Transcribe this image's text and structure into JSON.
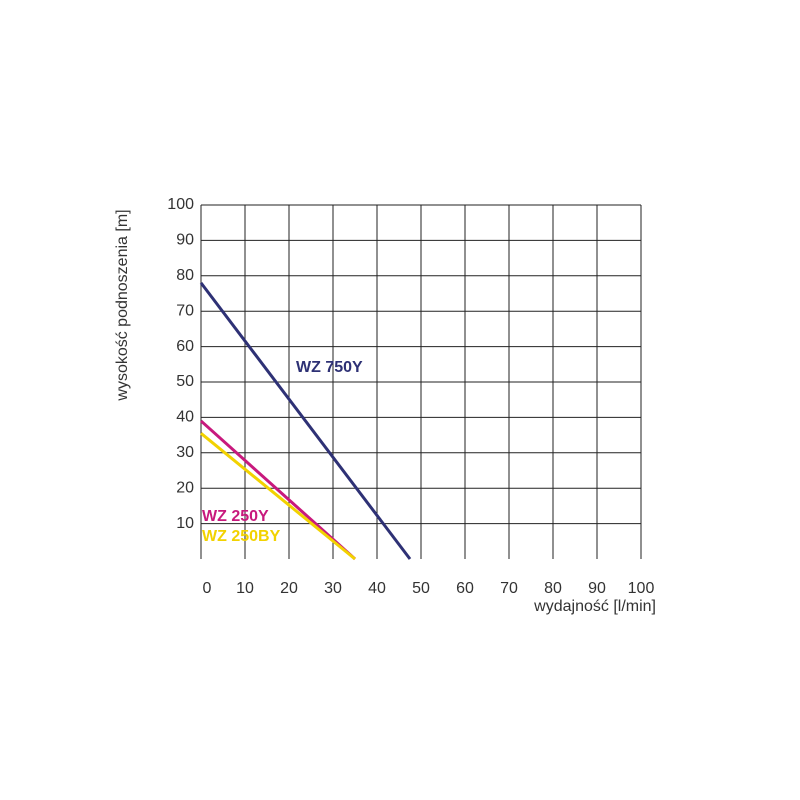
{
  "chart_data": {
    "type": "line",
    "xlabel": "wydajność [l/min]",
    "ylabel": "wysokość podnoszenia [m]",
    "xlim": [
      0,
      100
    ],
    "xticks": [
      0,
      10,
      20,
      30,
      40,
      50,
      60,
      70,
      80,
      90,
      100
    ],
    "ylim": [
      0,
      100
    ],
    "yticks": [
      10,
      20,
      30,
      40,
      50,
      60,
      70,
      80,
      90,
      100
    ],
    "grid": true,
    "series": [
      {
        "name": "WZ 750Y",
        "color": "#2e3175",
        "x": [
          0,
          47.5
        ],
        "values": [
          78,
          0
        ]
      },
      {
        "name": "WZ 250Y",
        "color": "#c8197d",
        "x": [
          0,
          35
        ],
        "values": [
          39,
          0
        ]
      },
      {
        "name": "WZ 250BY",
        "color": "#f2d200",
        "x": [
          0,
          35
        ],
        "values": [
          35.5,
          0
        ]
      }
    ]
  }
}
